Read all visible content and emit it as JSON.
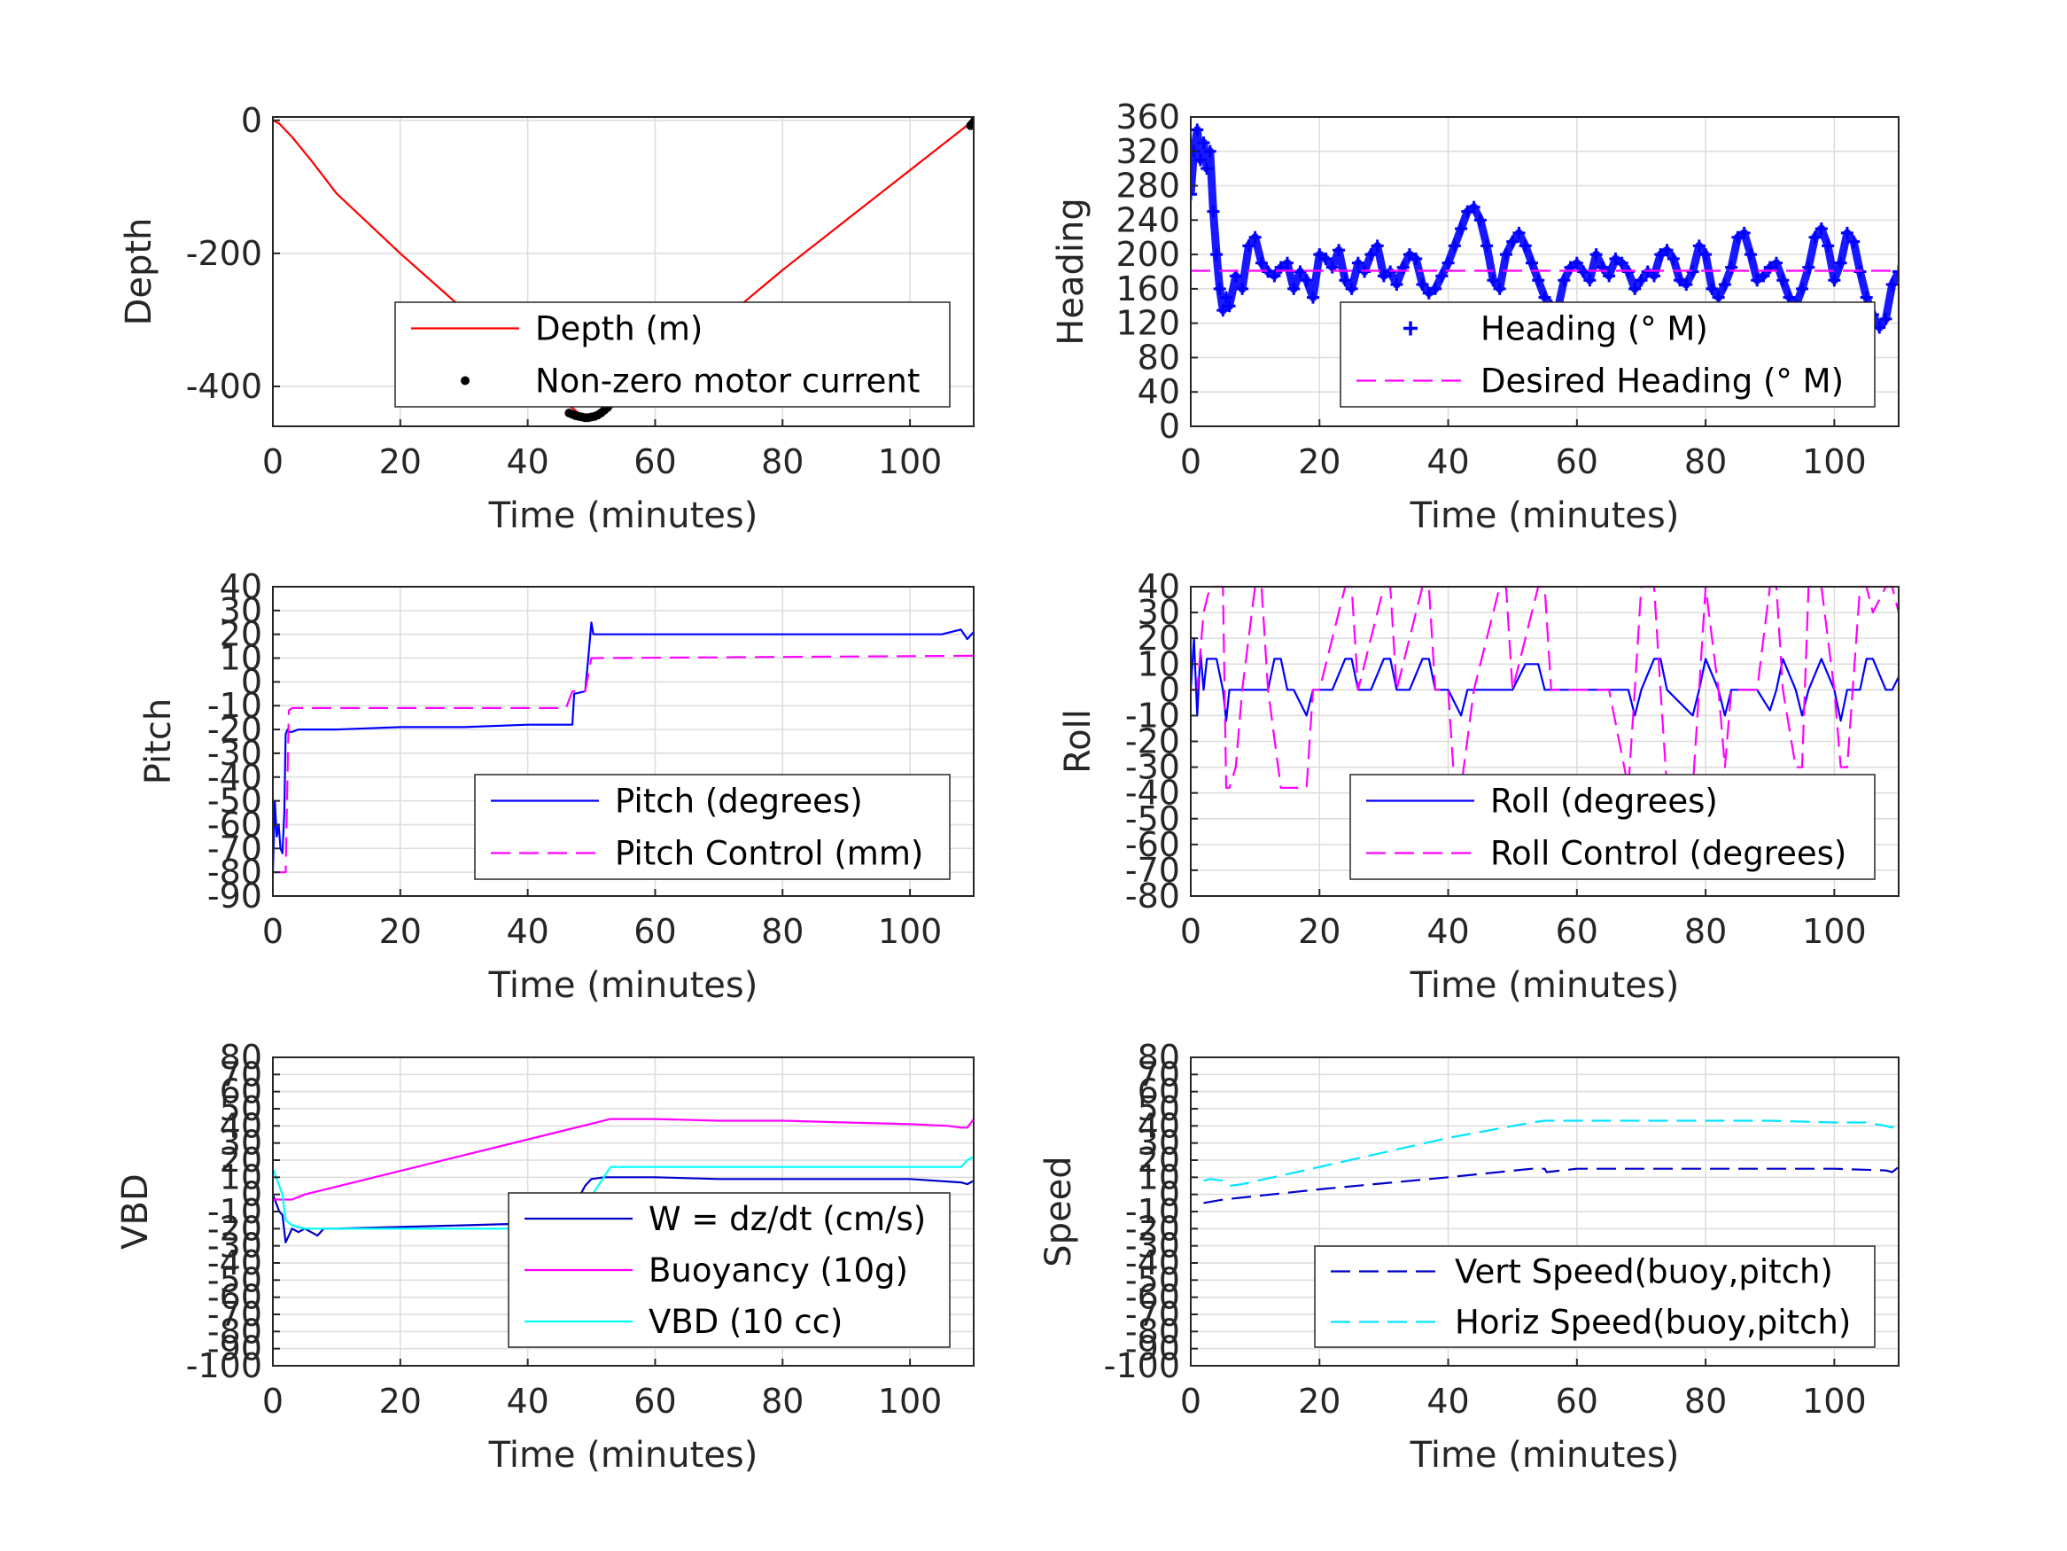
{
  "chart_data": [
    {
      "type": "line",
      "xlabel": "Time (minutes)",
      "ylabel": "Depth",
      "xlim": [
        0,
        110
      ],
      "ylim": [
        -460,
        5
      ],
      "xticks": [
        0,
        20,
        40,
        60,
        80,
        100
      ],
      "yticks": [
        0,
        -200,
        -400
      ],
      "grid": true,
      "legend_position": "bottom-right",
      "series": [
        {
          "name": "Depth (m)",
          "color": "#ff0000",
          "style": "solid",
          "x": [
            0,
            1,
            3,
            6,
            10,
            20,
            30,
            40,
            46,
            48,
            50,
            52,
            60,
            70,
            80,
            90,
            100,
            108,
            110
          ],
          "y": [
            0,
            -5,
            -25,
            -60,
            -110,
            -200,
            -285,
            -370,
            -425,
            -440,
            -445,
            -440,
            -385,
            -305,
            -225,
            -150,
            -75,
            -15,
            0
          ]
        },
        {
          "name": "Non-zero motor current",
          "color": "#000000",
          "style": "dots",
          "x": [
            46.5,
            47,
            47.5,
            48,
            48.5,
            49,
            49.5,
            50,
            50.5,
            51,
            51.5,
            52,
            52.5,
            109.5,
            109.8,
            110,
            110.2
          ],
          "y": [
            -440,
            -442,
            -444,
            -445,
            -446,
            -447,
            -447,
            -446,
            -445,
            -443,
            -440,
            -436,
            -432,
            -8,
            -5,
            -3,
            0
          ]
        }
      ]
    },
    {
      "type": "line",
      "xlabel": "Time (minutes)",
      "ylabel": "Heading",
      "xlim": [
        0,
        110
      ],
      "ylim": [
        0,
        360
      ],
      "xticks": [
        0,
        20,
        40,
        60,
        80,
        100
      ],
      "yticks": [
        0,
        40,
        80,
        120,
        160,
        200,
        240,
        280,
        320,
        360
      ],
      "grid": true,
      "legend_position": "bottom-right",
      "series": [
        {
          "name": "Heading (° M)",
          "color": "#0000ff",
          "style": "plus",
          "x": [
            0,
            0.5,
            1,
            1.5,
            2,
            2.5,
            3,
            3.5,
            4,
            4.5,
            5,
            5.5,
            6,
            7,
            8,
            9,
            10,
            11,
            12,
            13,
            14,
            15,
            16,
            17,
            18,
            19,
            20,
            21,
            22,
            23,
            24,
            25,
            26,
            27,
            28,
            29,
            30,
            31,
            32,
            33,
            34,
            35,
            36,
            37,
            38,
            39,
            40,
            41,
            42,
            43,
            44,
            45,
            46,
            47,
            48,
            49,
            50,
            51,
            52,
            53,
            54,
            55,
            56,
            57,
            58,
            59,
            60,
            61,
            62,
            63,
            64,
            65,
            66,
            67,
            68,
            69,
            70,
            71,
            72,
            73,
            74,
            75,
            76,
            77,
            78,
            79,
            80,
            81,
            82,
            83,
            84,
            85,
            86,
            87,
            88,
            89,
            90,
            91,
            92,
            93,
            94,
            95,
            96,
            97,
            98,
            99,
            100,
            101,
            102,
            103,
            104,
            105,
            106,
            107,
            108,
            109,
            110
          ],
          "y": [
            270,
            320,
            345,
            310,
            330,
            300,
            320,
            250,
            200,
            160,
            135,
            150,
            140,
            175,
            160,
            210,
            220,
            190,
            180,
            175,
            185,
            190,
            160,
            180,
            170,
            150,
            200,
            195,
            185,
            205,
            170,
            160,
            190,
            180,
            200,
            210,
            175,
            180,
            165,
            185,
            200,
            195,
            165,
            155,
            160,
            175,
            190,
            210,
            230,
            250,
            255,
            240,
            210,
            170,
            160,
            200,
            215,
            225,
            210,
            190,
            170,
            150,
            140,
            135,
            170,
            185,
            190,
            180,
            170,
            200,
            185,
            175,
            195,
            190,
            180,
            160,
            170,
            180,
            175,
            200,
            205,
            195,
            170,
            165,
            180,
            210,
            200,
            160,
            150,
            165,
            185,
            220,
            225,
            200,
            170,
            175,
            185,
            190,
            170,
            150,
            140,
            160,
            185,
            220,
            230,
            210,
            170,
            190,
            225,
            215,
            180,
            150,
            130,
            115,
            125,
            165,
            180
          ]
        },
        {
          "name": "Desired Heading (° M)",
          "color": "#ff00ff",
          "style": "dashed",
          "x": [
            0,
            110
          ],
          "y": [
            181,
            181
          ]
        }
      ]
    },
    {
      "type": "line",
      "xlabel": "Time (minutes)",
      "ylabel": "Pitch",
      "xlim": [
        0,
        110
      ],
      "ylim": [
        -90,
        40
      ],
      "xticks": [
        0,
        20,
        40,
        60,
        80,
        100
      ],
      "yticks": [
        -90,
        -80,
        -70,
        -60,
        -50,
        -40,
        -30,
        -20,
        -10,
        0,
        10,
        20,
        30,
        40
      ],
      "grid": true,
      "legend_position": "bottom-right",
      "series": [
        {
          "name": "Pitch (degrees)",
          "color": "#0000ff",
          "style": "solid",
          "x": [
            0,
            0.3,
            0.6,
            0.9,
            1.2,
            1.5,
            1.8,
            2,
            2.3,
            2.6,
            3,
            4,
            10,
            20,
            30,
            40,
            46,
            47,
            47.3,
            49,
            49.5,
            50,
            50.3,
            52,
            60,
            70,
            80,
            90,
            100,
            105,
            108,
            109,
            110
          ],
          "y": [
            -80,
            -50,
            -65,
            -60,
            -70,
            -72,
            -55,
            -22,
            -20,
            -21,
            -21,
            -20,
            -20,
            -19,
            -19,
            -18,
            -18,
            -18,
            -5,
            -4,
            10,
            25,
            20,
            20,
            20,
            20,
            20,
            20,
            20,
            20,
            22,
            18,
            21
          ]
        },
        {
          "name": "Pitch Control (mm)",
          "color": "#ff00ff",
          "style": "dashed",
          "x": [
            0,
            2,
            2.5,
            3,
            46,
            47,
            49,
            50,
            51,
            110
          ],
          "y": [
            -80,
            -80,
            -12,
            -11,
            -11,
            -4,
            -4,
            10,
            10,
            11
          ]
        }
      ]
    },
    {
      "type": "line",
      "xlabel": "Time (minutes)",
      "ylabel": "Roll",
      "xlim": [
        0,
        110
      ],
      "ylim": [
        -80,
        40
      ],
      "xticks": [
        0,
        20,
        40,
        60,
        80,
        100
      ],
      "yticks": [
        -80,
        -70,
        -60,
        -50,
        -40,
        -30,
        -20,
        -10,
        0,
        10,
        20,
        30,
        40
      ],
      "grid": true,
      "legend_position": "bottom-right",
      "series": [
        {
          "name": "Roll (degrees)",
          "color": "#0000ff",
          "style": "solid",
          "x": [
            0,
            0.5,
            1,
            1.5,
            2,
            2.5,
            3,
            4,
            5,
            5.5,
            6,
            7,
            8,
            9,
            10,
            12,
            13,
            14,
            15,
            16,
            18,
            19,
            20,
            22,
            24,
            25,
            26,
            28,
            30,
            31,
            32,
            34,
            36,
            37,
            38,
            40,
            42,
            43,
            44,
            50,
            52,
            54,
            55,
            56,
            60,
            65,
            68,
            69,
            70,
            72,
            73,
            74,
            78,
            79,
            80,
            82,
            83,
            84,
            88,
            90,
            91,
            92,
            94,
            95,
            96,
            98,
            100,
            101,
            102,
            104,
            105,
            106,
            108,
            109,
            110
          ],
          "y": [
            0,
            20,
            -10,
            15,
            0,
            12,
            12,
            12,
            0,
            -12,
            0,
            0,
            0,
            0,
            0,
            0,
            12,
            12,
            0,
            0,
            -10,
            0,
            0,
            0,
            12,
            12,
            0,
            0,
            12,
            12,
            0,
            0,
            12,
            12,
            0,
            0,
            -10,
            0,
            0,
            0,
            10,
            10,
            0,
            0,
            0,
            0,
            0,
            -10,
            0,
            12,
            12,
            0,
            -10,
            0,
            12,
            0,
            -10,
            0,
            0,
            -8,
            0,
            12,
            0,
            -10,
            0,
            12,
            0,
            -12,
            0,
            0,
            12,
            12,
            0,
            0,
            5
          ]
        },
        {
          "name": "Roll Control (degrees)",
          "color": "#ff00ff",
          "style": "dashed",
          "x": [
            0,
            1,
            2,
            3,
            5,
            5.5,
            6,
            7,
            8,
            10,
            11,
            12,
            14,
            18,
            19,
            20,
            24,
            25,
            26,
            30,
            31,
            32,
            36,
            37,
            38,
            40,
            41,
            42,
            44,
            48,
            49,
            50,
            54,
            55,
            56,
            60,
            65,
            68,
            69,
            70,
            72,
            73,
            74,
            78,
            79,
            80,
            82,
            83,
            84,
            88,
            90,
            91,
            92,
            94,
            95,
            96,
            98,
            100,
            101,
            102,
            104,
            105,
            106,
            108,
            109,
            110
          ],
          "y": [
            0,
            0,
            30,
            40,
            40,
            -38,
            -38,
            -30,
            0,
            40,
            40,
            0,
            -38,
            -38,
            0,
            0,
            40,
            40,
            0,
            40,
            40,
            0,
            40,
            40,
            0,
            0,
            -38,
            -38,
            0,
            40,
            40,
            0,
            40,
            40,
            0,
            0,
            0,
            -38,
            0,
            40,
            40,
            0,
            -38,
            -38,
            0,
            40,
            0,
            -30,
            0,
            0,
            40,
            40,
            0,
            -30,
            -30,
            40,
            40,
            0,
            -30,
            -30,
            40,
            40,
            30,
            40,
            40,
            30
          ]
        }
      ]
    },
    {
      "type": "line",
      "xlabel": "Time (minutes)",
      "ylabel": "VBD",
      "xlim": [
        0,
        110
      ],
      "ylim": [
        -100,
        80
      ],
      "xticks": [
        0,
        20,
        40,
        60,
        80,
        100
      ],
      "yticks": [
        -100,
        -90,
        -80,
        -70,
        -60,
        -50,
        -40,
        -30,
        -20,
        -10,
        0,
        10,
        20,
        30,
        40,
        50,
        60,
        70,
        80
      ],
      "grid": true,
      "legend_position": "bottom-right",
      "series": [
        {
          "name": "W = dz/dt (cm/s)",
          "color": "#0000cc",
          "style": "solid",
          "x": [
            0,
            0.5,
            1,
            1.5,
            2,
            3,
            4,
            5,
            6,
            7,
            8,
            10,
            20,
            30,
            40,
            45,
            46,
            47,
            48,
            49,
            50,
            52,
            55,
            60,
            70,
            80,
            90,
            100,
            108,
            109,
            110
          ],
          "y": [
            0,
            -5,
            -10,
            -12,
            -28,
            -20,
            -22,
            -20,
            -22,
            -24,
            -20,
            -20,
            -19,
            -18,
            -17,
            -16,
            -15,
            -12,
            -2,
            5,
            9,
            10,
            10,
            10,
            9,
            9,
            9,
            9,
            7,
            6,
            8
          ]
        },
        {
          "name": "Buoyancy (10g)",
          "color": "#ff00ff",
          "style": "solid",
          "x": [
            0,
            3,
            5,
            53,
            60,
            70,
            80,
            90,
            100,
            106,
            108,
            109,
            110
          ],
          "y": [
            -3,
            -3,
            0,
            44,
            44,
            43,
            43,
            42,
            41,
            40,
            39,
            39,
            44
          ]
        },
        {
          "name": "VBD (10 cc)",
          "color": "#00ffff",
          "style": "solid",
          "x": [
            0,
            0.5,
            1,
            1.5,
            2,
            3,
            5,
            10,
            20,
            30,
            40,
            46,
            47,
            53,
            60,
            70,
            80,
            90,
            100,
            105,
            108,
            109,
            110
          ],
          "y": [
            15,
            10,
            5,
            0,
            -15,
            -18,
            -20,
            -20,
            -20,
            -20,
            -20,
            -20,
            -18,
            16,
            16,
            16,
            16,
            16,
            16,
            16,
            16,
            20,
            22
          ]
        }
      ]
    },
    {
      "type": "line",
      "xlabel": "Time (minutes)",
      "ylabel": "Speed",
      "xlim": [
        0,
        110
      ],
      "ylim": [
        -100,
        80
      ],
      "xticks": [
        0,
        20,
        40,
        60,
        80,
        100
      ],
      "yticks": [
        -100,
        -90,
        -80,
        -70,
        -60,
        -50,
        -40,
        -30,
        -20,
        -10,
        0,
        10,
        20,
        30,
        40,
        50,
        60,
        70,
        80
      ],
      "grid": true,
      "legend_position": "bottom-right",
      "series": [
        {
          "name": "Vert Speed(buoy,pitch)",
          "color": "#0000cc",
          "style": "dashed",
          "x": [
            2,
            5,
            20,
            40,
            53,
            55,
            55.3,
            60,
            70,
            80,
            90,
            100,
            108,
            109,
            110
          ],
          "y": [
            -5,
            -3,
            3,
            10,
            15,
            15,
            13,
            15,
            15,
            15,
            15,
            15,
            14,
            13,
            16
          ]
        },
        {
          "name": "Horiz Speed(buoy,pitch)",
          "color": "#00e5ff",
          "style": "dashed",
          "x": [
            2,
            3,
            5,
            6,
            8,
            20,
            40,
            53,
            55,
            60,
            70,
            80,
            90,
            100,
            105,
            108,
            109,
            110
          ],
          "y": [
            8,
            9,
            8,
            5,
            6,
            16,
            33,
            42,
            43,
            43,
            43,
            43,
            43,
            42,
            42,
            40,
            39,
            44
          ]
        }
      ]
    }
  ]
}
